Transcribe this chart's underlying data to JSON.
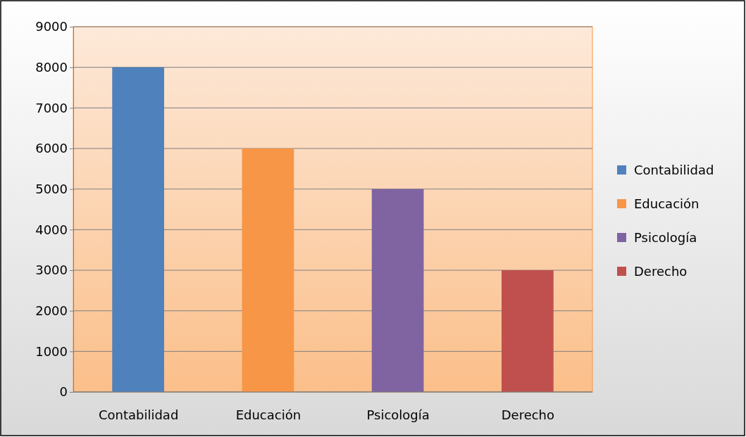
{
  "chart_data": {
    "type": "bar",
    "categories": [
      "Contabilidad",
      "Educación",
      "Psicología",
      "Derecho"
    ],
    "series": [
      {
        "name": "Contabilidad",
        "color": "#4f81bd",
        "values": [
          8000,
          null,
          null,
          null
        ]
      },
      {
        "name": "Educación",
        "color": "#f79646",
        "values": [
          null,
          6000,
          null,
          null
        ]
      },
      {
        "name": "Psicología",
        "color": "#8064a2",
        "values": [
          null,
          null,
          5000,
          null
        ]
      },
      {
        "name": "Derecho",
        "color": "#c0504d",
        "values": [
          null,
          null,
          null,
          3000
        ]
      }
    ],
    "ylim": [
      0,
      9000
    ],
    "yticks": [
      0,
      1000,
      2000,
      3000,
      4000,
      5000,
      6000,
      7000,
      8000,
      9000
    ],
    "grid": "y",
    "legend": "right"
  }
}
